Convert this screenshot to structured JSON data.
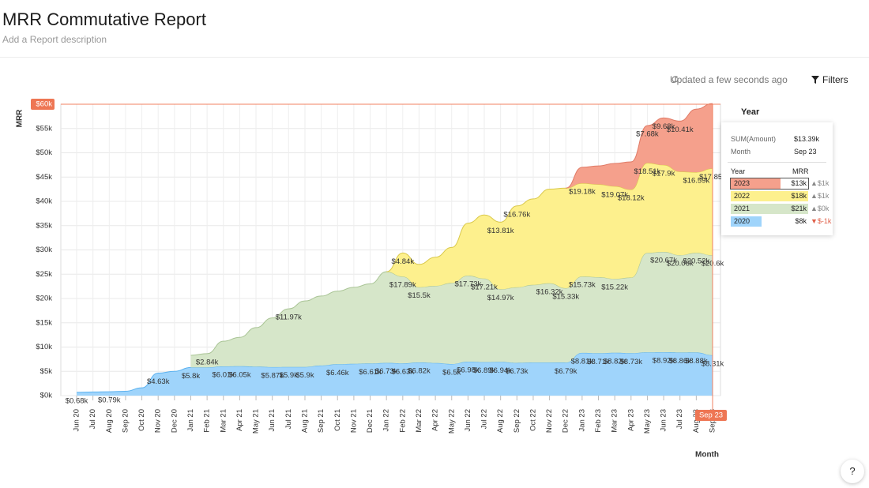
{
  "header": {
    "title": "MRR Commutative Report",
    "description": "Add a Report description"
  },
  "toolbar": {
    "updated": "Updated a few seconds ago",
    "filters": "Filters"
  },
  "help": "?",
  "tooltip": {
    "title": "Year",
    "sum_label": "SUM(Amount)",
    "sum_value": "$13.39k",
    "month_label": "Month",
    "month_value": "Sep 23",
    "col_year": "Year",
    "col_mrr": "MRR",
    "rows": [
      {
        "year": "2023",
        "mrr": "$13k",
        "change": "▲$1k"
      },
      {
        "year": "2022",
        "mrr": "$18k",
        "change": "▲$1k"
      },
      {
        "year": "2021",
        "mrr": "$21k",
        "change": "▲$0k"
      },
      {
        "year": "2020",
        "mrr": "$8k",
        "change": "▼$-1k"
      }
    ]
  },
  "chart_data": {
    "type": "stacked_area",
    "y_label": "MRR",
    "x_label": "Month",
    "grid": true,
    "categories": [
      "Jun 20",
      "Jul 20",
      "Aug 20",
      "Sep 20",
      "Oct 20",
      "Nov 20",
      "Dec 20",
      "Jan 21",
      "Feb 21",
      "Mar 21",
      "Apr 21",
      "May 21",
      "Jun 21",
      "Jul 21",
      "Aug 21",
      "Sep 21",
      "Oct 21",
      "Nov 21",
      "Dec 21",
      "Jan 22",
      "Feb 22",
      "Mar 22",
      "Apr 22",
      "May 22",
      "Jun 22",
      "Jul 22",
      "Aug 22",
      "Sep 22",
      "Oct 22",
      "Nov 22",
      "Dec 22",
      "Jan 23",
      "Feb 23",
      "Mar 23",
      "Apr 23",
      "May 23",
      "Jun 23",
      "Jul 23",
      "Aug 23",
      "Sep 23"
    ],
    "ylim": [
      0,
      60
    ],
    "yticks": [
      {
        "value": 0,
        "label": "$0k"
      },
      {
        "value": 5,
        "label": "$5k"
      },
      {
        "value": 10,
        "label": "$10k"
      },
      {
        "value": 15,
        "label": "$15k"
      },
      {
        "value": 20,
        "label": "$20k"
      },
      {
        "value": 25,
        "label": "$25k"
      },
      {
        "value": 30,
        "label": "$30k"
      },
      {
        "value": 35,
        "label": "$35k"
      },
      {
        "value": 40,
        "label": "$40k"
      },
      {
        "value": 45,
        "label": "$45k"
      },
      {
        "value": 50,
        "label": "$50k"
      },
      {
        "value": 55,
        "label": "$55k"
      },
      {
        "value": 60,
        "label": "$60k"
      }
    ],
    "series": [
      {
        "name": "2020",
        "color": "#9fd4fb",
        "line_color": "#5cb2ef",
        "values": [
          0.68,
          0.75,
          0.79,
          0.9,
          1.6,
          4.63,
          5,
          5.8,
          5.8,
          6.01,
          6.05,
          5.95,
          5.87,
          5.9,
          5.9,
          6.2,
          6.46,
          6.55,
          6.61,
          6.73,
          6.63,
          6.82,
          6.7,
          6.5,
          6.98,
          6.89,
          6.94,
          6.73,
          6.8,
          6.8,
          6.79,
          8.81,
          8.71,
          8.82,
          8.73,
          8.9,
          8.92,
          8.86,
          8.88,
          8.31
        ],
        "value_labels": [
          "$0.68k",
          null,
          "$0.79k",
          null,
          null,
          "$4.63k",
          null,
          "$5.8k",
          null,
          "$6.01k",
          "$6.05k",
          null,
          "$5.87k",
          "$5.9k",
          "$5.9k",
          null,
          "$6.46k",
          null,
          "$6.61k",
          "$6.73k",
          "$6.63k",
          "$6.82k",
          null,
          "$6.5k",
          "$6.98k",
          "$6.89k",
          "$6.94k",
          "$6.73k",
          null,
          null,
          "$6.79k",
          "$8.81k",
          "$8.71k",
          "$8.82k",
          "$8.73k",
          null,
          "$8.92k",
          "$8.86k",
          "$8.88k",
          "$8.31k"
        ]
      },
      {
        "name": "2021",
        "color": "#d6e6c9",
        "line_color": "#a9c495",
        "values": [
          null,
          null,
          null,
          null,
          null,
          null,
          null,
          2.5,
          2.84,
          5.19,
          5.95,
          8.05,
          10.13,
          11.97,
          13.6,
          14.3,
          15.04,
          15.75,
          16.39,
          18.77,
          17.89,
          15.5,
          15.9,
          16.7,
          17.73,
          17.21,
          14.97,
          15.57,
          16,
          16.32,
          15.33,
          15.73,
          15.69,
          15.22,
          15.57,
          20.5,
          20.67,
          20.06,
          20.52,
          20.6
        ],
        "value_labels": [
          null,
          null,
          null,
          null,
          null,
          null,
          null,
          null,
          "$2.84k",
          null,
          null,
          null,
          null,
          "$11.97k",
          null,
          null,
          null,
          null,
          null,
          null,
          "$17.89k",
          "$15.5k",
          null,
          null,
          "$17.73k",
          "$17.21k",
          "$14.97k",
          null,
          null,
          "$16.32k",
          "$15.33k",
          "$15.73k",
          null,
          "$15.22k",
          null,
          null,
          "$20.67k",
          "$20.06k",
          "$20.52k",
          "$20.6k"
        ]
      },
      {
        "name": "2022",
        "color": "#fdf08d",
        "line_color": "#d9c84a",
        "values": [
          null,
          null,
          null,
          null,
          null,
          null,
          null,
          null,
          null,
          null,
          null,
          null,
          null,
          null,
          null,
          null,
          null,
          null,
          null,
          0,
          4.84,
          4.7,
          5.9,
          7.3,
          10.8,
          13.1,
          13.81,
          16.76,
          17.7,
          19.4,
          20.6,
          19.18,
          19.1,
          19.07,
          18.12,
          18.51,
          17.9,
          17.2,
          16.59,
          17.85
        ],
        "value_labels": [
          null,
          null,
          null,
          null,
          null,
          null,
          null,
          null,
          null,
          null,
          null,
          null,
          null,
          null,
          null,
          null,
          null,
          null,
          null,
          null,
          "$4.84k",
          null,
          null,
          null,
          null,
          null,
          "$13.81k",
          "$16.76k",
          null,
          null,
          null,
          "$19.18k",
          null,
          "$19.07k",
          "$18.12k",
          "$18.51k",
          "$17.9k",
          null,
          "$16.59k",
          "$17.85k"
        ]
      },
      {
        "name": "2023",
        "color": "#f5a08c",
        "line_color": "#e07a66",
        "values": [
          null,
          null,
          null,
          null,
          null,
          null,
          null,
          null,
          null,
          null,
          null,
          null,
          null,
          null,
          null,
          null,
          null,
          null,
          null,
          null,
          null,
          null,
          null,
          null,
          null,
          null,
          null,
          null,
          null,
          null,
          0,
          3.3,
          3.8,
          4.7,
          5.7,
          7.68,
          9.68,
          10.41,
          13,
          13.39
        ],
        "value_labels": [
          null,
          null,
          null,
          null,
          null,
          null,
          null,
          null,
          null,
          null,
          null,
          null,
          null,
          null,
          null,
          null,
          null,
          null,
          null,
          null,
          null,
          null,
          null,
          null,
          null,
          null,
          null,
          null,
          null,
          null,
          null,
          null,
          null,
          null,
          null,
          "$7.68k",
          "$9.68k",
          "$10.41k",
          null,
          null
        ]
      }
    ]
  }
}
